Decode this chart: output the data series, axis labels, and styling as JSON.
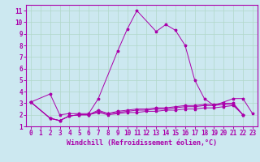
{
  "xlabel": "Windchill (Refroidissement éolien,°C)",
  "background_color": "#cce8f0",
  "grid_color": "#b0d8c8",
  "line_color": "#aa00aa",
  "xlim": [
    -0.5,
    23.5
  ],
  "ylim": [
    1,
    11.5
  ],
  "xticks": [
    0,
    1,
    2,
    3,
    4,
    5,
    6,
    7,
    8,
    9,
    10,
    11,
    12,
    13,
    14,
    15,
    16,
    17,
    18,
    19,
    20,
    21,
    22,
    23
  ],
  "yticks": [
    1,
    2,
    3,
    4,
    5,
    6,
    7,
    8,
    9,
    10,
    11
  ],
  "series1_x": [
    0,
    2,
    3,
    4,
    5,
    6,
    7,
    9,
    10,
    11,
    13,
    14,
    15,
    16,
    17,
    18,
    19,
    21,
    22,
    23
  ],
  "series1_y": [
    3.1,
    3.8,
    2.0,
    2.1,
    2.1,
    2.1,
    3.4,
    7.5,
    9.4,
    11.0,
    9.2,
    9.8,
    9.3,
    8.0,
    5.0,
    3.4,
    2.8,
    3.4,
    3.4,
    2.1
  ],
  "series2_x": [
    0,
    2,
    3,
    4,
    5,
    6,
    7,
    8,
    9,
    10,
    11,
    12,
    13,
    14,
    15,
    16,
    17,
    18,
    19,
    20,
    21,
    22
  ],
  "series2_y": [
    3.1,
    1.7,
    1.5,
    1.9,
    2.0,
    2.0,
    2.2,
    2.0,
    2.1,
    2.2,
    2.2,
    2.3,
    2.3,
    2.4,
    2.4,
    2.5,
    2.5,
    2.6,
    2.6,
    2.7,
    2.8,
    2.0
  ],
  "series3_x": [
    0,
    2,
    3,
    4,
    5,
    6,
    7,
    8,
    9,
    10,
    11,
    12,
    13,
    14,
    15,
    16,
    17,
    18,
    19,
    20,
    21,
    22
  ],
  "series3_y": [
    3.1,
    1.7,
    1.5,
    1.9,
    2.0,
    2.0,
    2.3,
    2.1,
    2.2,
    2.3,
    2.4,
    2.4,
    2.5,
    2.5,
    2.6,
    2.7,
    2.7,
    2.8,
    2.8,
    2.9,
    2.9,
    2.0
  ],
  "series4_x": [
    0,
    2,
    3,
    4,
    5,
    6,
    7,
    8,
    9,
    10,
    11,
    12,
    13,
    14,
    15,
    16,
    17,
    18,
    19,
    20,
    21,
    22
  ],
  "series4_y": [
    3.1,
    1.7,
    1.5,
    1.9,
    2.0,
    2.0,
    2.4,
    2.1,
    2.3,
    2.4,
    2.5,
    2.5,
    2.6,
    2.6,
    2.7,
    2.8,
    2.8,
    2.9,
    2.9,
    3.0,
    3.0,
    2.0
  ],
  "xlabel_fontsize": 6,
  "tick_fontsize": 5.5
}
